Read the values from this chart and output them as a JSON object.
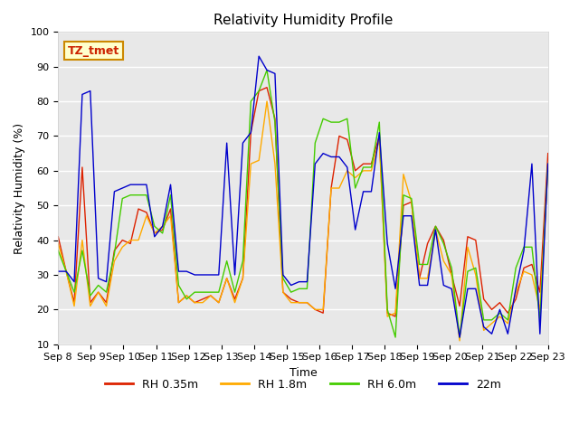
{
  "title": "Relativity Humidity Profile",
  "xlabel": "Time",
  "ylabel": "Relativity Humidity (%)",
  "ylim": [
    10,
    100
  ],
  "annotation_text": "TZ_tmet",
  "annotation_color": "#cc2200",
  "annotation_bg": "#ffffcc",
  "annotation_border": "#cc8800",
  "fig_bg": "#ffffff",
  "plot_bg": "#e8e8e8",
  "grid_color": "#ffffff",
  "line_colors": {
    "RH 0.35m": "#dd2200",
    "RH 1.8m": "#ffaa00",
    "RH 6.0m": "#44cc00",
    "22m": "#0000cc"
  },
  "x_ticks": [
    "Sep 8",
    "Sep 9",
    "Sep 10",
    "Sep 11",
    "Sep 12",
    "Sep 13",
    "Sep 14",
    "Sep 15",
    "Sep 16",
    "Sep 17",
    "Sep 18",
    "Sep 19",
    "Sep 20",
    "Sep 21",
    "Sep 22",
    "Sep 23"
  ],
  "x_values": [
    0,
    1,
    2,
    3,
    4,
    5,
    6,
    7,
    8,
    9,
    10,
    11,
    12,
    13,
    14,
    15
  ],
  "series": {
    "RH 0.35m": [
      41,
      31,
      22,
      61,
      22,
      25,
      22,
      37,
      40,
      39,
      49,
      48,
      42,
      43,
      49,
      22,
      24,
      22,
      23,
      24,
      22,
      29,
      23,
      29,
      71,
      83,
      84,
      75,
      25,
      23,
      22,
      22,
      20,
      19,
      55,
      70,
      69,
      60,
      62,
      62,
      70,
      19,
      18,
      50,
      51,
      29,
      39,
      44,
      40,
      30,
      21,
      41,
      40,
      23,
      20,
      22,
      19,
      23,
      32,
      33,
      25,
      65
    ],
    "RH 1.8m": [
      39,
      31,
      21,
      40,
      21,
      25,
      21,
      34,
      38,
      40,
      40,
      47,
      42,
      44,
      47,
      22,
      24,
      22,
      22,
      24,
      22,
      29,
      22,
      29,
      62,
      63,
      80,
      62,
      25,
      22,
      22,
      22,
      20,
      20,
      55,
      55,
      60,
      58,
      60,
      60,
      69,
      18,
      19,
      59,
      51,
      29,
      29,
      43,
      34,
      30,
      11,
      38,
      30,
      14,
      16,
      18,
      16,
      25,
      31,
      30,
      20,
      61
    ],
    "RH 6.0m": [
      37,
      31,
      25,
      37,
      24,
      27,
      25,
      36,
      52,
      53,
      53,
      53,
      44,
      42,
      53,
      27,
      23,
      25,
      25,
      25,
      25,
      34,
      25,
      34,
      80,
      83,
      89,
      74,
      29,
      25,
      26,
      26,
      68,
      75,
      74,
      74,
      75,
      55,
      61,
      61,
      74,
      20,
      12,
      53,
      52,
      33,
      33,
      44,
      39,
      32,
      12,
      31,
      32,
      17,
      17,
      19,
      17,
      32,
      38,
      38,
      17,
      62
    ],
    "22m": [
      31,
      31,
      28,
      82,
      83,
      29,
      28,
      54,
      55,
      56,
      56,
      56,
      41,
      44,
      56,
      31,
      31,
      30,
      30,
      30,
      30,
      68,
      30,
      68,
      71,
      93,
      89,
      88,
      30,
      27,
      28,
      28,
      62,
      65,
      64,
      64,
      61,
      43,
      54,
      54,
      71,
      39,
      26,
      47,
      47,
      27,
      27,
      43,
      27,
      26,
      12,
      26,
      26,
      15,
      13,
      20,
      13,
      26,
      37,
      62,
      13,
      62
    ]
  }
}
